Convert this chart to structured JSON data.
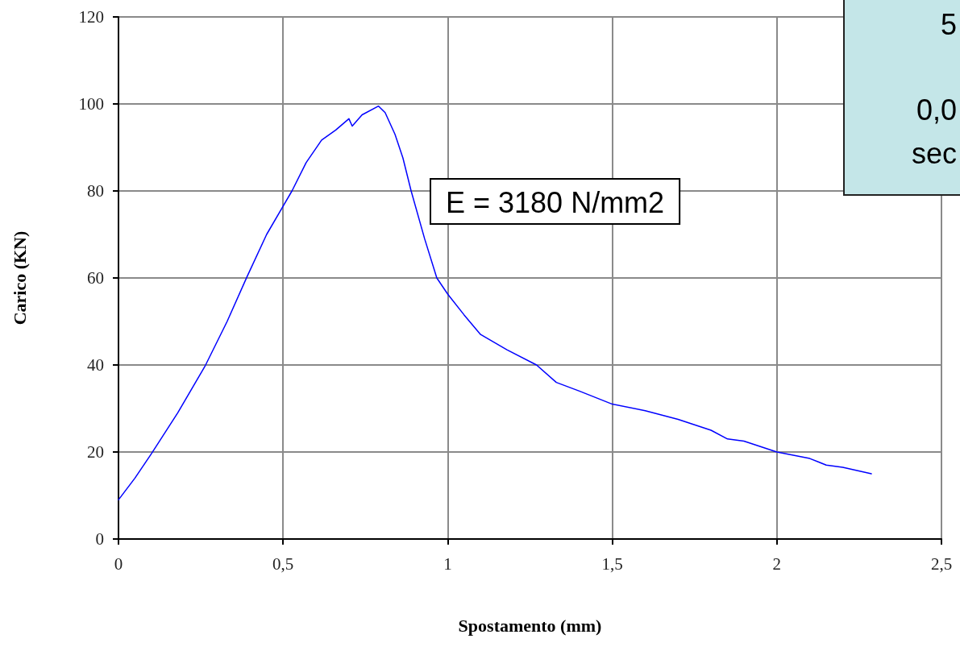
{
  "chart_data": {
    "type": "line",
    "xlabel": "Spostamento (mm)",
    "ylabel": "Carico (KN)",
    "x": [
      0,
      0.05,
      0.1,
      0.18,
      0.264,
      0.33,
      0.39,
      0.45,
      0.527,
      0.57,
      0.617,
      0.66,
      0.7,
      0.71,
      0.74,
      0.79,
      0.81,
      0.84,
      0.864,
      0.889,
      0.93,
      0.967,
      1.0,
      1.05,
      1.1,
      1.18,
      1.27,
      1.33,
      1.4,
      1.5,
      1.6,
      1.7,
      1.8,
      1.85,
      1.9,
      2.0,
      2.1,
      2.15,
      2.2,
      2.287
    ],
    "series": [
      {
        "color": "#0000ff",
        "values": [
          9,
          14,
          19.6,
          29,
          39.9,
          50,
          60.2,
          70,
          80,
          86.5,
          91.7,
          94,
          96.6,
          94.9,
          97.5,
          99.5,
          98,
          93,
          87.6,
          80,
          69,
          60,
          56.3,
          51.5,
          47,
          43.5,
          40,
          36,
          34,
          31,
          29.5,
          27.5,
          25,
          23,
          22.5,
          20,
          18.5,
          17,
          16.5,
          15
        ]
      }
    ],
    "xlim": [
      0,
      2.5
    ],
    "xticks": [
      0,
      {
        "value": 0.5,
        "label": "0,5"
      },
      1,
      {
        "value": 1.5,
        "label": "1,5"
      },
      2,
      {
        "value": 2.5,
        "label": "2,5"
      }
    ],
    "ylim": [
      0,
      120
    ],
    "yticks": [
      0,
      20,
      40,
      60,
      80,
      100,
      120
    ],
    "grid": true,
    "marker": "none",
    "line_style": "solid",
    "annotations": [
      "E = 3180 N/mm2",
      "5",
      "0,0",
      "sec"
    ]
  }
}
